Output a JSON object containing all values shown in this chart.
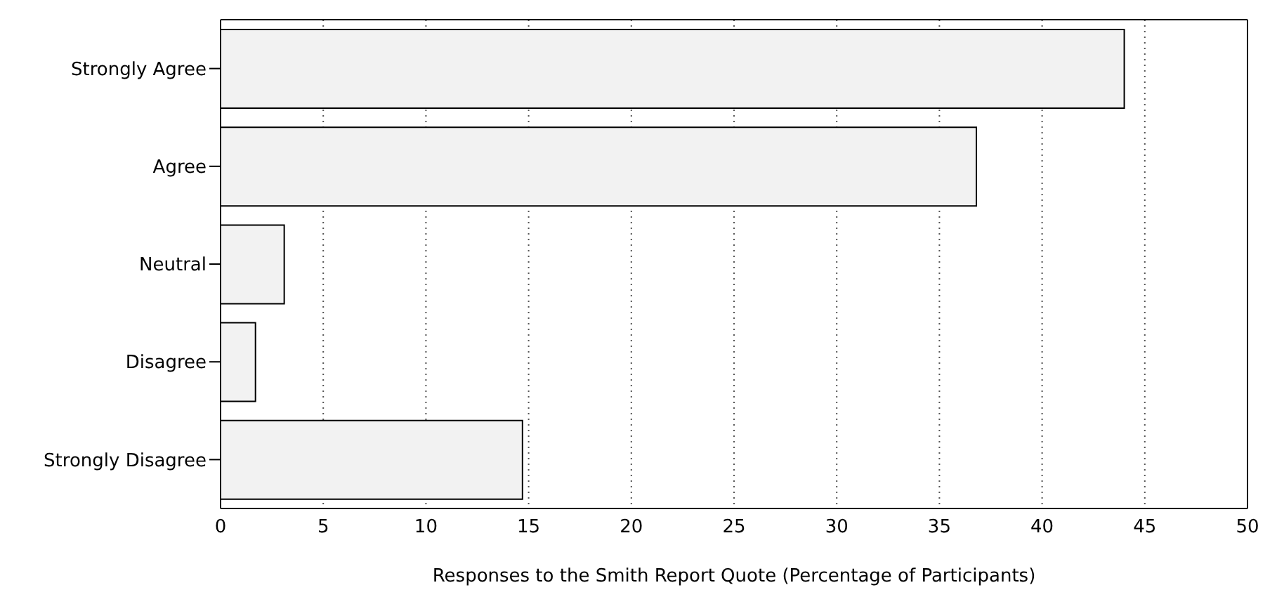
{
  "chart_data": {
    "type": "bar",
    "orientation": "horizontal",
    "xlabel": "Responses to the Smith Report Quote (Percentage of Participants)",
    "categories": [
      "Strongly Agree",
      "Agree",
      "Neutral",
      "Disagree",
      "Strongly Disagree"
    ],
    "values": [
      44,
      36.8,
      3.1,
      1.7,
      14.7
    ],
    "color": "#f2f2f2",
    "xlim": [
      0,
      50
    ],
    "xticks": [
      0,
      5,
      10,
      15,
      20,
      25,
      30,
      35,
      40,
      45,
      50
    ],
    "grid": "x"
  }
}
